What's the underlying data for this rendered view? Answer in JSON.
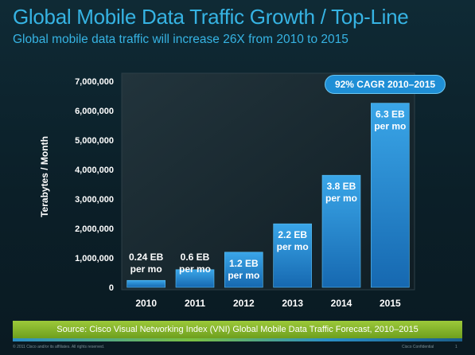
{
  "header": {
    "title": "Global Mobile Data Traffic Growth / Top-Line",
    "subtitle": "Global mobile data traffic will increase 26X from 2010 to 2015"
  },
  "badge": {
    "text": "92% CAGR 2010–2015"
  },
  "source": {
    "text": "Source: Cisco Visual Networking Index (VNI) Global Mobile Data Traffic Forecast, 2010–2015"
  },
  "footer": {
    "copyright": "© 2011 Cisco and/or its affiliates. All rights reserved.",
    "confidential": "Cisco Confidential",
    "page": "1"
  },
  "colors": {
    "title": "#36b3e3",
    "bar_top": "#3aa6e8",
    "bar_bottom": "#1668b0",
    "source_bar": "#8bbb2e"
  },
  "chart_data": {
    "type": "bar",
    "title": "",
    "xlabel": "",
    "ylabel": "Terabytes / Month",
    "categories": [
      "2010",
      "2011",
      "2012",
      "2013",
      "2014",
      "2015"
    ],
    "values": [
      237000,
      601000,
      1195000,
      2158000,
      3806000,
      6254000
    ],
    "data_labels": [
      [
        "0.24 EB",
        "per mo"
      ],
      [
        "0.6 EB",
        "per mo"
      ],
      [
        "1.2 EB",
        "per mo"
      ],
      [
        "2.2 EB",
        "per mo"
      ],
      [
        "3.8 EB",
        "per mo"
      ],
      [
        "6.3 EB",
        "per mo"
      ]
    ],
    "yticks": [
      "0",
      "1,000,000",
      "2,000,000",
      "3,000,000",
      "4,000,000",
      "5,000,000",
      "6,000,000",
      "7,000,000"
    ],
    "ylim": [
      0,
      7000000
    ],
    "grid": false,
    "legend": "none"
  }
}
